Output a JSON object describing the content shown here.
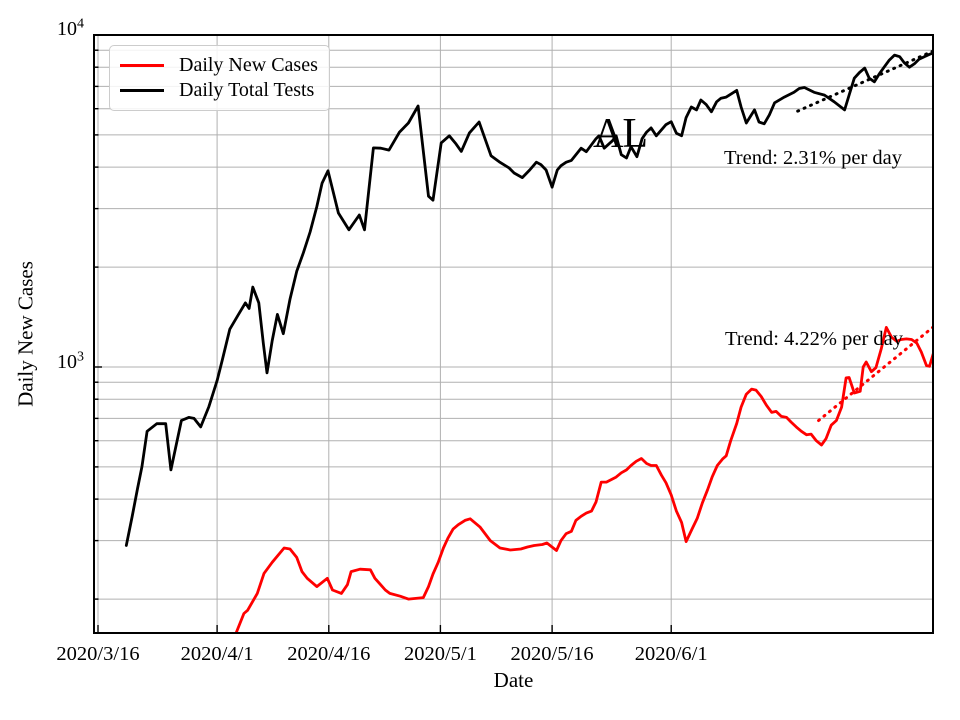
{
  "chart_data": {
    "type": "line",
    "title": "",
    "state_annotation": "AL",
    "xlabel": "Date",
    "ylabel": "Daily New Cases",
    "y_scale": "log",
    "ylim": [
      158,
      10000
    ],
    "xlim_days": [
      -0.55,
      112.3
    ],
    "grid": true,
    "grid_color": "#b0b0b0",
    "y_major_ticks": [
      {
        "base": "10",
        "exp": "3",
        "value": 1000
      },
      {
        "base": "10",
        "exp": "4",
        "value": 10000
      }
    ],
    "y_gridlines": [
      200,
      300,
      400,
      500,
      600,
      700,
      800,
      900,
      1000,
      2000,
      3000,
      4000,
      5000,
      6000,
      7000,
      8000,
      9000,
      10000
    ],
    "x_ticks": [
      {
        "day": 0,
        "label": "2020/3/16"
      },
      {
        "day": 16,
        "label": "2020/4/1"
      },
      {
        "day": 31,
        "label": "2020/4/16"
      },
      {
        "day": 46,
        "label": "2020/5/1"
      },
      {
        "day": 61,
        "label": "2020/5/16"
      },
      {
        "day": 77,
        "label": "2020/6/1"
      }
    ],
    "x_start_date": "2020/3/16",
    "legend": {
      "position": "upper left",
      "entries": [
        "Daily New Cases",
        "Daily Total Tests"
      ]
    },
    "series": [
      {
        "name": "Daily New Cases",
        "color": "#ff0000",
        "points": [
          [
            18.5,
            157
          ],
          [
            19.6,
            181
          ],
          [
            20.1,
            185
          ],
          [
            21.4,
            208
          ],
          [
            22.3,
            239
          ],
          [
            23.4,
            258
          ],
          [
            25.0,
            285
          ],
          [
            25.8,
            283
          ],
          [
            26.7,
            267
          ],
          [
            27.4,
            242
          ],
          [
            28.1,
            231
          ],
          [
            29.4,
            218
          ],
          [
            30.8,
            231
          ],
          [
            31.5,
            213
          ],
          [
            32.7,
            208
          ],
          [
            33.5,
            221
          ],
          [
            34.0,
            242
          ],
          [
            35.2,
            246
          ],
          [
            36.6,
            245
          ],
          [
            37.2,
            231
          ],
          [
            38.6,
            213
          ],
          [
            39.2,
            208
          ],
          [
            40.6,
            204
          ],
          [
            41.7,
            200
          ],
          [
            43.7,
            202
          ],
          [
            44.4,
            218
          ],
          [
            45.0,
            238
          ],
          [
            45.7,
            258
          ],
          [
            46.4,
            285
          ],
          [
            47.0,
            305
          ],
          [
            47.7,
            325
          ],
          [
            48.4,
            335
          ],
          [
            49.3,
            345
          ],
          [
            50.0,
            349
          ],
          [
            51.3,
            330
          ],
          [
            52.7,
            300
          ],
          [
            54.0,
            285
          ],
          [
            55.4,
            281
          ],
          [
            56.8,
            283
          ],
          [
            57.7,
            287
          ],
          [
            58.6,
            290
          ],
          [
            59.7,
            292
          ],
          [
            60.3,
            295
          ],
          [
            61.6,
            280
          ],
          [
            62.2,
            300
          ],
          [
            62.9,
            315
          ],
          [
            63.6,
            320
          ],
          [
            64.2,
            345
          ],
          [
            64.9,
            355
          ],
          [
            65.6,
            363
          ],
          [
            66.3,
            368
          ],
          [
            66.9,
            392
          ],
          [
            67.6,
            450
          ],
          [
            68.3,
            450
          ],
          [
            69.6,
            466
          ],
          [
            70.3,
            480
          ],
          [
            71.0,
            490
          ],
          [
            71.6,
            505
          ],
          [
            72.3,
            520
          ],
          [
            73.0,
            530
          ],
          [
            73.7,
            512
          ],
          [
            74.3,
            505
          ],
          [
            75.0,
            505
          ],
          [
            75.7,
            472
          ],
          [
            76.3,
            448
          ],
          [
            77.0,
            412
          ],
          [
            77.7,
            368
          ],
          [
            78.4,
            340
          ],
          [
            79.0,
            298
          ],
          [
            79.8,
            325
          ],
          [
            80.5,
            350
          ],
          [
            81.2,
            390
          ],
          [
            81.9,
            427
          ],
          [
            82.5,
            466
          ],
          [
            83.2,
            505
          ],
          [
            83.9,
            528
          ],
          [
            84.4,
            540
          ],
          [
            85.0,
            600
          ],
          [
            85.8,
            676
          ],
          [
            86.4,
            757
          ],
          [
            87.1,
            828
          ],
          [
            87.8,
            858
          ],
          [
            88.4,
            852
          ],
          [
            89.1,
            815
          ],
          [
            89.8,
            767
          ],
          [
            90.5,
            730
          ],
          [
            91.1,
            735
          ],
          [
            91.8,
            710
          ],
          [
            92.5,
            705
          ],
          [
            93.1,
            683
          ],
          [
            93.8,
            660
          ],
          [
            94.5,
            640
          ],
          [
            95.2,
            625
          ],
          [
            95.8,
            628
          ],
          [
            96.5,
            600
          ],
          [
            97.2,
            582
          ],
          [
            97.8,
            608
          ],
          [
            98.5,
            668
          ],
          [
            99.2,
            690
          ],
          [
            99.9,
            757
          ],
          [
            100.5,
            927
          ],
          [
            100.9,
            930
          ],
          [
            101.6,
            835
          ],
          [
            102.4,
            845
          ],
          [
            102.8,
            1000
          ],
          [
            103.2,
            1035
          ],
          [
            103.9,
            968
          ],
          [
            104.5,
            995
          ],
          [
            105.2,
            1130
          ],
          [
            105.9,
            1316
          ],
          [
            106.6,
            1230
          ],
          [
            107.3,
            1195
          ],
          [
            107.9,
            1210
          ],
          [
            108.6,
            1215
          ],
          [
            109.3,
            1210
          ],
          [
            110.0,
            1180
          ],
          [
            110.6,
            1110
          ],
          [
            111.3,
            1010
          ],
          [
            111.7,
            1005
          ],
          [
            112.2,
            1095
          ]
        ]
      },
      {
        "name": "Daily Total Tests",
        "color": "#000000",
        "points": [
          [
            3.8,
            290
          ],
          [
            4.6,
            355
          ],
          [
            5.3,
            430
          ],
          [
            5.9,
            500
          ],
          [
            6.6,
            640
          ],
          [
            7.9,
            675
          ],
          [
            9.1,
            675
          ],
          [
            9.8,
            490
          ],
          [
            11.2,
            690
          ],
          [
            12.2,
            705
          ],
          [
            12.9,
            700
          ],
          [
            13.8,
            660
          ],
          [
            14.9,
            760
          ],
          [
            16.0,
            910
          ],
          [
            16.7,
            1050
          ],
          [
            17.7,
            1300
          ],
          [
            18.8,
            1430
          ],
          [
            19.8,
            1560
          ],
          [
            20.3,
            1500
          ],
          [
            20.8,
            1740
          ],
          [
            21.6,
            1560
          ],
          [
            22.2,
            1180
          ],
          [
            22.7,
            960
          ],
          [
            23.4,
            1200
          ],
          [
            24.1,
            1440
          ],
          [
            24.9,
            1260
          ],
          [
            25.8,
            1600
          ],
          [
            26.7,
            1940
          ],
          [
            27.6,
            2210
          ],
          [
            28.5,
            2550
          ],
          [
            29.4,
            3040
          ],
          [
            30.1,
            3580
          ],
          [
            30.9,
            3900
          ],
          [
            32.3,
            2910
          ],
          [
            33.7,
            2590
          ],
          [
            35.1,
            2870
          ],
          [
            35.8,
            2590
          ],
          [
            37.0,
            4570
          ],
          [
            38.0,
            4560
          ],
          [
            39.1,
            4500
          ],
          [
            40.5,
            5100
          ],
          [
            41.7,
            5430
          ],
          [
            43.0,
            6110
          ],
          [
            44.4,
            3270
          ],
          [
            45.0,
            3180
          ],
          [
            46.1,
            4730
          ],
          [
            47.2,
            4970
          ],
          [
            48.1,
            4700
          ],
          [
            48.8,
            4460
          ],
          [
            49.9,
            5070
          ],
          [
            51.2,
            5470
          ],
          [
            52.8,
            4330
          ],
          [
            53.9,
            4150
          ],
          [
            55.2,
            3980
          ],
          [
            55.9,
            3840
          ],
          [
            57.0,
            3720
          ],
          [
            58.0,
            3920
          ],
          [
            58.9,
            4140
          ],
          [
            59.5,
            4070
          ],
          [
            60.2,
            3920
          ],
          [
            61.0,
            3480
          ],
          [
            61.7,
            3920
          ],
          [
            62.2,
            4040
          ],
          [
            62.9,
            4140
          ],
          [
            63.6,
            4190
          ],
          [
            64.9,
            4560
          ],
          [
            65.6,
            4450
          ],
          [
            66.9,
            4870
          ],
          [
            67.3,
            4970
          ],
          [
            68.0,
            4560
          ],
          [
            69.1,
            4800
          ],
          [
            69.6,
            4970
          ],
          [
            70.3,
            4360
          ],
          [
            71.0,
            4260
          ],
          [
            71.6,
            4610
          ],
          [
            72.4,
            4300
          ],
          [
            73.1,
            4870
          ],
          [
            73.7,
            5100
          ],
          [
            74.3,
            5250
          ],
          [
            75.0,
            4970
          ],
          [
            76.3,
            5370
          ],
          [
            77.0,
            5480
          ],
          [
            77.7,
            5060
          ],
          [
            78.4,
            4970
          ],
          [
            79.0,
            5640
          ],
          [
            79.7,
            6070
          ],
          [
            80.4,
            5950
          ],
          [
            81.0,
            6370
          ],
          [
            81.7,
            6170
          ],
          [
            82.4,
            5870
          ],
          [
            83.1,
            6290
          ],
          [
            83.7,
            6450
          ],
          [
            84.4,
            6500
          ],
          [
            85.8,
            6810
          ],
          [
            86.4,
            6070
          ],
          [
            87.1,
            5430
          ],
          [
            88.2,
            5950
          ],
          [
            88.8,
            5470
          ],
          [
            89.5,
            5400
          ],
          [
            90.2,
            5750
          ],
          [
            90.9,
            6250
          ],
          [
            92.2,
            6500
          ],
          [
            93.5,
            6720
          ],
          [
            94.2,
            6900
          ],
          [
            94.9,
            6950
          ],
          [
            96.2,
            6720
          ],
          [
            97.6,
            6590
          ],
          [
            98.9,
            6290
          ],
          [
            100.3,
            5950
          ],
          [
            100.9,
            6590
          ],
          [
            101.6,
            7410
          ],
          [
            102.3,
            7710
          ],
          [
            103.0,
            7950
          ],
          [
            103.6,
            7410
          ],
          [
            104.3,
            7230
          ],
          [
            105.0,
            7660
          ],
          [
            105.6,
            8000
          ],
          [
            106.3,
            8400
          ],
          [
            107.0,
            8700
          ],
          [
            107.7,
            8600
          ],
          [
            108.3,
            8250
          ],
          [
            109.0,
            8000
          ],
          [
            109.7,
            8200
          ],
          [
            110.3,
            8450
          ],
          [
            111.0,
            8600
          ],
          [
            111.7,
            8750
          ],
          [
            112.2,
            8830
          ]
        ]
      }
    ],
    "trend_lines": [
      {
        "for_series": "Daily Total Tests",
        "label": "Trend: 2.31% per day",
        "rate_pct_per_day": 2.31,
        "color": "#000000",
        "points": [
          [
            94.0,
            5900
          ],
          [
            112.2,
            8950
          ]
        ]
      },
      {
        "for_series": "Daily New Cases",
        "label": "Trend: 4.22% per day",
        "rate_pct_per_day": 4.22,
        "color": "#ff0000",
        "points": [
          [
            96.8,
            690
          ],
          [
            112.2,
            1320
          ]
        ]
      }
    ]
  }
}
